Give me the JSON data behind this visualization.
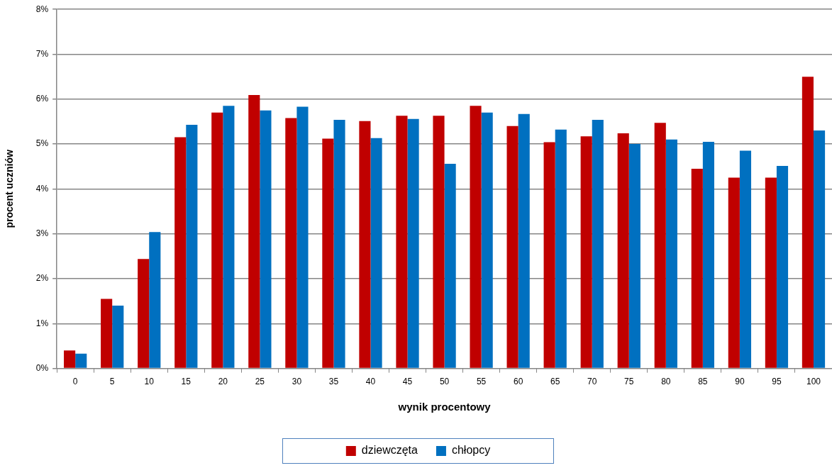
{
  "chart_data": {
    "type": "bar",
    "xlabel": "wynik procentowy",
    "ylabel": "procent uczniów",
    "categories": [
      "0",
      "5",
      "10",
      "15",
      "20",
      "25",
      "30",
      "35",
      "40",
      "45",
      "50",
      "55",
      "60",
      "65",
      "70",
      "75",
      "80",
      "85",
      "90",
      "95",
      "100"
    ],
    "series": [
      {
        "name": "dziewczęta",
        "color": "#c00000",
        "values": [
          0.4,
          1.55,
          2.44,
          5.15,
          5.7,
          6.09,
          5.58,
          5.12,
          5.51,
          5.63,
          5.63,
          5.85,
          5.4,
          5.04,
          5.17,
          5.24,
          5.47,
          4.45,
          4.25,
          4.25,
          6.5
        ]
      },
      {
        "name": "chłopcy",
        "color": "#0070c0",
        "values": [
          0.33,
          1.4,
          3.04,
          5.43,
          5.85,
          5.75,
          5.83,
          5.54,
          5.13,
          5.56,
          4.56,
          5.7,
          5.67,
          5.32,
          5.54,
          5.0,
          5.1,
          5.05,
          4.85,
          4.51,
          5.3
        ]
      }
    ],
    "ylim": [
      0,
      8
    ],
    "yticks": [
      {
        "value": 0,
        "label": "0%"
      },
      {
        "value": 1,
        "label": "1%"
      },
      {
        "value": 2,
        "label": "2%"
      },
      {
        "value": 3,
        "label": "3%"
      },
      {
        "value": 4,
        "label": "4%"
      },
      {
        "value": 5,
        "label": "5%"
      },
      {
        "value": 6,
        "label": "6%"
      },
      {
        "value": 7,
        "label": "7%"
      },
      {
        "value": 8,
        "label": "8%"
      }
    ],
    "grid": "y",
    "legend": "bottom"
  }
}
